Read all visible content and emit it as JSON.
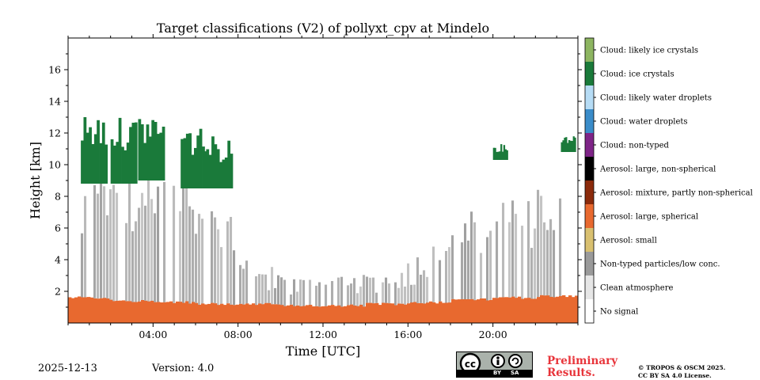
{
  "chart_data": {
    "type": "heatmap",
    "title": "Target classifications (V2) of pollyxt_cpv at Mindelo",
    "xlabel": "Time [UTC]",
    "ylabel": "Height [km]",
    "xlim": [
      0,
      24
    ],
    "ylim": [
      0,
      18
    ],
    "xticks": [
      4,
      8,
      12,
      16,
      20
    ],
    "xtick_labels": [
      "04:00",
      "08:00",
      "12:00",
      "16:00",
      "20:00"
    ],
    "yticks": [
      2,
      4,
      6,
      8,
      10,
      12,
      14,
      16
    ],
    "ytick_labels": [
      "2",
      "4",
      "6",
      "8",
      "10",
      "12",
      "14",
      "16"
    ],
    "legend": [
      {
        "label": "Cloud: likely ice crystals",
        "color": "#8db561"
      },
      {
        "label": "Cloud: ice crystals",
        "color": "#1a7a3a"
      },
      {
        "label": "Cloud: likely water droplets",
        "color": "#b6dcf5"
      },
      {
        "label": "Cloud: water droplets",
        "color": "#3a8cc9"
      },
      {
        "label": "Cloud: non-typed",
        "color": "#7e2487"
      },
      {
        "label": "Aerosol: large, non-spherical",
        "color": "#000000"
      },
      {
        "label": "Aerosol: mixture, partly non-spherical",
        "color": "#8b2a0b"
      },
      {
        "label": "Aerosol: large, spherical",
        "color": "#e8692f"
      },
      {
        "label": "Aerosol: small",
        "color": "#d9c070"
      },
      {
        "label": "Non-typed particles/low conc.",
        "color": "#9a9a9a"
      },
      {
        "label": "Clean atmosphere",
        "color": "#e6e6e6"
      },
      {
        "label": "No signal",
        "color": "#ffffff"
      }
    ],
    "layers": [
      {
        "class": "Aerosol: large, spherical",
        "x_start": 0,
        "x_end": 24,
        "top_km": [
          1.6,
          1.4,
          1.3,
          1.2,
          1.2,
          1.1,
          1.1,
          1.2,
          1.3,
          1.5,
          1.6,
          1.7,
          1.8
        ]
      },
      {
        "class": "Non-typed particles/low conc.",
        "segments": [
          [
            0.6,
            9.0
          ],
          [
            2.0,
            9.5
          ],
          [
            3.3,
            9.5
          ],
          [
            5.3,
            9.5
          ],
          [
            6.8,
            9.0
          ],
          [
            7.5,
            7.5
          ],
          [
            8.6,
            4.0
          ],
          [
            11.0,
            3.0
          ],
          [
            15.5,
            3.5
          ],
          [
            20.3,
            8.5
          ],
          [
            23.3,
            8.5
          ]
        ]
      },
      {
        "class": "Cloud: ice crystals",
        "segments": [
          [
            0.6,
            8.8,
            13.3
          ],
          [
            2.0,
            8.8,
            13.0
          ],
          [
            3.3,
            9.0,
            13.3
          ],
          [
            5.3,
            8.5,
            12.5
          ],
          [
            6.5,
            8.5,
            11.8
          ],
          [
            20.0,
            10.3,
            11.3
          ],
          [
            23.2,
            10.8,
            11.9
          ]
        ]
      }
    ]
  },
  "footer": {
    "date": "2025-12-13",
    "version": "Version: 4.0",
    "license_badge": {
      "left": "BY",
      "right": "SA",
      "icon": "cc-by-sa-icon"
    },
    "preliminary_line1": "Preliminary",
    "preliminary_line2": "Results.",
    "copyright_line1": "© TROPOS & OSCM 2025.",
    "copyright_line2": "CC BY SA 4.0 License."
  }
}
